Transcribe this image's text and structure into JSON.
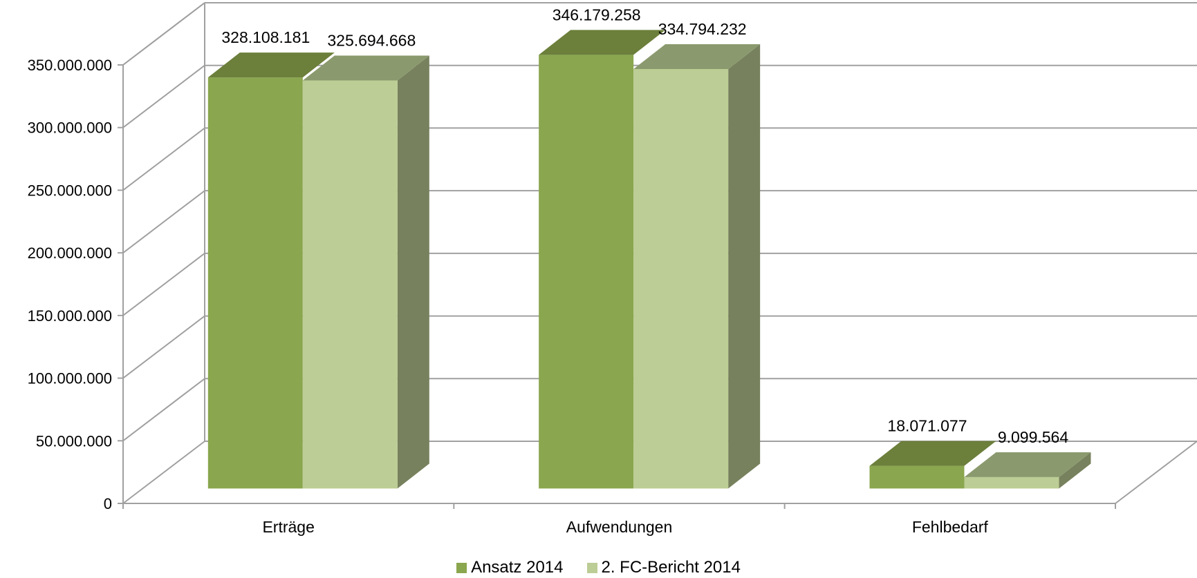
{
  "chart_data": {
    "type": "bar",
    "categories": [
      "Erträge",
      "Aufwendungen",
      "Fehlbedarf"
    ],
    "series": [
      {
        "name": "Ansatz 2014",
        "values": [
          328108181,
          346179258,
          18071077
        ],
        "labels": [
          "328.108.181",
          "346.179.258",
          "18.071.077"
        ],
        "color": "#8aa64e",
        "top_color": "#6c7f3b",
        "side_color": "#5f7133"
      },
      {
        "name": "2. FC-Bericht 2014",
        "values": [
          325694668,
          334794232,
          9099564
        ],
        "labels": [
          "325.694.668",
          "334.794.232",
          "9.099.564"
        ],
        "color": "#bccd95",
        "top_color": "#8b9a6e",
        "side_color": "#7a8460"
      }
    ],
    "yticks": [
      "0",
      "50.000.000",
      "100.000.000",
      "150.000.000",
      "200.000.000",
      "250.000.000",
      "300.000.000",
      "350.000.000"
    ],
    "ylim": [
      0,
      350000000
    ],
    "three_d": true,
    "grid": true,
    "legend_position": "bottom"
  }
}
